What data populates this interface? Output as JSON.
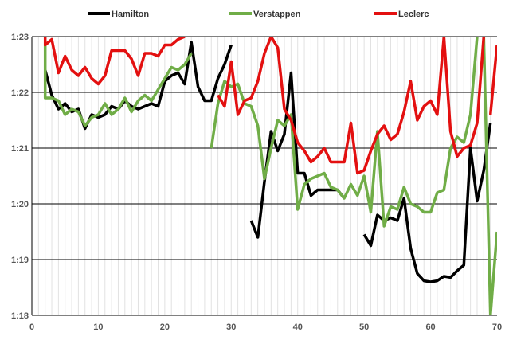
{
  "chart_data": {
    "type": "line",
    "title": "",
    "xlabel": "",
    "ylabel": "",
    "xlim": [
      0,
      70
    ],
    "ylim": [
      78,
      83
    ],
    "x_ticks": [
      0,
      10,
      20,
      30,
      40,
      50,
      60,
      70
    ],
    "x_tick_labels": [
      "0",
      "10",
      "20",
      "30",
      "40",
      "50",
      "60",
      "70"
    ],
    "y_ticks": [
      78,
      79,
      80,
      81,
      82,
      83
    ],
    "y_tick_labels": [
      "1:18",
      "1:19",
      "1:20",
      "1:21",
      "1:22",
      "1:23"
    ],
    "grid": {
      "horizontal": true,
      "vertical_minor": true
    },
    "legend_position": "top",
    "series": [
      {
        "name": "Hamilton",
        "color": "#000000",
        "segments": [
          [
            [
              2,
              82.4
            ],
            [
              3,
              81.95
            ],
            [
              4,
              81.7
            ],
            [
              5,
              81.8
            ],
            [
              6,
              81.65
            ],
            [
              7,
              81.7
            ],
            [
              8,
              81.35
            ],
            [
              9,
              81.6
            ],
            [
              10,
              81.55
            ],
            [
              11,
              81.6
            ],
            [
              12,
              81.75
            ],
            [
              13,
              81.7
            ],
            [
              14,
              81.85
            ],
            [
              15,
              81.75
            ],
            [
              16,
              81.7
            ],
            [
              17,
              81.75
            ],
            [
              18,
              81.8
            ],
            [
              19,
              81.75
            ],
            [
              20,
              82.2
            ],
            [
              21,
              82.3
            ],
            [
              22,
              82.35
            ],
            [
              23,
              82.15
            ],
            [
              24,
              82.9
            ],
            [
              25,
              82.1
            ],
            [
              26,
              81.85
            ],
            [
              27,
              81.85
            ],
            [
              28,
              82.25
            ],
            [
              29,
              82.5
            ],
            [
              30,
              82.85
            ]
          ],
          [
            [
              33,
              79.7
            ],
            [
              34,
              79.4
            ],
            [
              35,
              80.4
            ],
            [
              36,
              81.3
            ],
            [
              37,
              80.95
            ],
            [
              38,
              81.25
            ],
            [
              39,
              82.35
            ],
            [
              40,
              80.55
            ],
            [
              41,
              80.55
            ],
            [
              42,
              80.15
            ],
            [
              43,
              80.25
            ],
            [
              44,
              80.25
            ],
            [
              45,
              80.25
            ],
            [
              46,
              80.25
            ],
            [
              47,
              80.1
            ]
          ],
          [
            [
              50,
              79.45
            ],
            [
              51,
              79.25
            ],
            [
              52,
              79.8
            ],
            [
              53,
              79.7
            ],
            [
              54,
              79.75
            ],
            [
              55,
              79.7
            ],
            [
              56,
              80.1
            ],
            [
              57,
              79.2
            ],
            [
              58,
              78.75
            ],
            [
              59,
              78.62
            ],
            [
              60,
              78.6
            ],
            [
              61,
              78.62
            ],
            [
              62,
              78.7
            ],
            [
              63,
              78.68
            ],
            [
              64,
              78.8
            ],
            [
              65,
              78.9
            ],
            [
              66,
              81.0
            ],
            [
              67,
              80.05
            ],
            [
              68,
              80.6
            ],
            [
              69,
              81.45
            ]
          ]
        ]
      },
      {
        "name": "Verstappen",
        "color": "#70AD47",
        "segments": [
          [
            [
              2,
              82.85
            ],
            [
              2,
              81.9
            ],
            [
              3,
              81.9
            ],
            [
              4,
              81.85
            ],
            [
              5,
              81.6
            ],
            [
              6,
              81.7
            ],
            [
              7,
              81.65
            ],
            [
              8,
              81.4
            ],
            [
              9,
              81.55
            ],
            [
              10,
              81.6
            ],
            [
              11,
              81.8
            ],
            [
              12,
              81.6
            ],
            [
              13,
              81.7
            ],
            [
              14,
              81.9
            ],
            [
              15,
              81.65
            ],
            [
              16,
              81.85
            ],
            [
              17,
              81.95
            ],
            [
              18,
              81.85
            ],
            [
              19,
              82.05
            ],
            [
              20,
              82.25
            ],
            [
              21,
              82.45
            ],
            [
              22,
              82.4
            ],
            [
              23,
              82.5
            ],
            [
              24,
              82.7
            ]
          ],
          [
            [
              27,
              81.0
            ],
            [
              28,
              81.8
            ],
            [
              29,
              82.2
            ],
            [
              30,
              82.1
            ],
            [
              31,
              82.15
            ],
            [
              32,
              81.8
            ],
            [
              33,
              81.75
            ],
            [
              34,
              81.4
            ],
            [
              35,
              80.45
            ],
            [
              36,
              81.0
            ],
            [
              37,
              81.5
            ],
            [
              38,
              81.4
            ],
            [
              39,
              81.6
            ],
            [
              40,
              79.9
            ],
            [
              41,
              80.35
            ],
            [
              42,
              80.45
            ],
            [
              43,
              80.5
            ],
            [
              44,
              80.55
            ],
            [
              45,
              80.3
            ],
            [
              46,
              80.25
            ],
            [
              47,
              80.1
            ],
            [
              48,
              80.35
            ],
            [
              49,
              80.15
            ],
            [
              50,
              80.5
            ],
            [
              51,
              79.85
            ],
            [
              52,
              81.3
            ],
            [
              53,
              79.6
            ],
            [
              54,
              79.95
            ],
            [
              55,
              79.9
            ],
            [
              56,
              80.3
            ],
            [
              57,
              80.0
            ],
            [
              58,
              79.95
            ],
            [
              59,
              79.85
            ],
            [
              60,
              79.85
            ],
            [
              61,
              80.2
            ],
            [
              62,
              80.25
            ],
            [
              63,
              81.0
            ],
            [
              64,
              81.2
            ],
            [
              65,
              81.1
            ],
            [
              66,
              81.6
            ],
            [
              67,
              83.0
            ]
          ],
          [
            [
              68,
              83.0
            ],
            [
              69,
              78.0
            ],
            [
              70,
              79.5
            ]
          ]
        ]
      },
      {
        "name": "Leclerc",
        "color": "#E31010",
        "segments": [
          [
            [
              2,
              83.0
            ],
            [
              2,
              82.85
            ],
            [
              3,
              82.95
            ],
            [
              4,
              82.35
            ],
            [
              5,
              82.65
            ],
            [
              6,
              82.4
            ],
            [
              7,
              82.3
            ],
            [
              8,
              82.45
            ],
            [
              9,
              82.25
            ],
            [
              10,
              82.15
            ],
            [
              11,
              82.3
            ],
            [
              12,
              82.75
            ],
            [
              13,
              82.75
            ],
            [
              14,
              82.75
            ],
            [
              15,
              82.6
            ],
            [
              16,
              82.3
            ],
            [
              17,
              82.7
            ],
            [
              18,
              82.7
            ],
            [
              19,
              82.65
            ],
            [
              20,
              82.85
            ],
            [
              21,
              82.85
            ],
            [
              22,
              82.95
            ],
            [
              23,
              83.0
            ]
          ],
          [
            [
              28,
              81.95
            ],
            [
              29,
              81.75
            ],
            [
              30,
              82.55
            ],
            [
              31,
              81.6
            ],
            [
              32,
              81.85
            ],
            [
              33,
              81.9
            ],
            [
              34,
              82.2
            ],
            [
              35,
              82.7
            ],
            [
              36,
              83.0
            ],
            [
              37,
              82.8
            ],
            [
              38,
              81.7
            ],
            [
              39,
              81.5
            ],
            [
              40,
              81.1
            ],
            [
              41,
              80.95
            ],
            [
              42,
              80.75
            ],
            [
              43,
              80.85
            ],
            [
              44,
              81.0
            ],
            [
              45,
              80.75
            ],
            [
              46,
              80.75
            ],
            [
              47,
              80.75
            ],
            [
              48,
              81.45
            ],
            [
              49,
              80.55
            ],
            [
              50,
              80.6
            ],
            [
              51,
              80.95
            ],
            [
              52,
              81.25
            ],
            [
              53,
              81.4
            ],
            [
              54,
              81.15
            ],
            [
              55,
              81.25
            ],
            [
              56,
              81.65
            ],
            [
              57,
              82.2
            ],
            [
              58,
              81.5
            ],
            [
              59,
              81.75
            ],
            [
              60,
              81.85
            ],
            [
              61,
              81.6
            ],
            [
              62,
              83.0
            ],
            [
              63,
              81.3
            ],
            [
              64,
              80.85
            ],
            [
              65,
              81.0
            ],
            [
              66,
              81.05
            ],
            [
              67,
              81.45
            ],
            [
              68,
              83.0
            ]
          ],
          [
            [
              69,
              81.6
            ],
            [
              70,
              82.85
            ]
          ]
        ]
      }
    ]
  }
}
